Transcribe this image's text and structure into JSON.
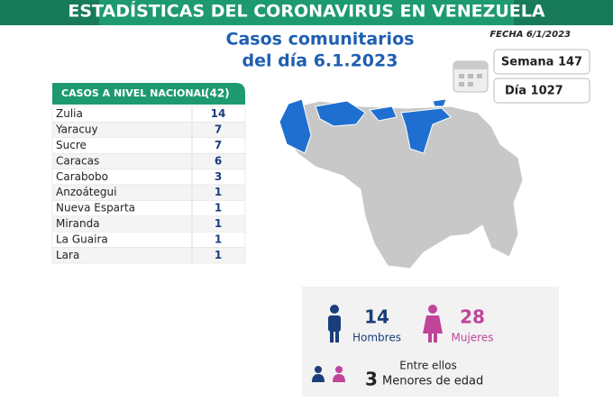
{
  "header": {
    "title": "ESTADÍSTICAS DEL CORONAVIRUS EN VENEZUELA",
    "subtitle_line1": "Casos comunitarios",
    "subtitle_line2": "del día 6.1.2023",
    "date": "FECHA 6/1/2023",
    "week": "Semana 147",
    "day": "Día 1027"
  },
  "table": {
    "title": "CASOS A NIVEL NACIONAL",
    "total": "(42)",
    "rows": [
      [
        "Zulia",
        14
      ],
      [
        "Yaracuy",
        7
      ],
      [
        "Sucre",
        7
      ],
      [
        "Caracas",
        6
      ],
      [
        "Carabobo",
        3
      ],
      [
        "Anzoátegui",
        1
      ],
      [
        "Nueva Esparta",
        1
      ],
      [
        "Miranda",
        1
      ],
      [
        "La Guaira",
        1
      ],
      [
        "Lara",
        1
      ]
    ]
  },
  "demographics": {
    "men": 14,
    "men_label": "Hombres",
    "women": 28,
    "women_label": "Mujeres",
    "among": "Entre ellos",
    "minors": 3,
    "minors_label": "Menores de edad"
  }
}
